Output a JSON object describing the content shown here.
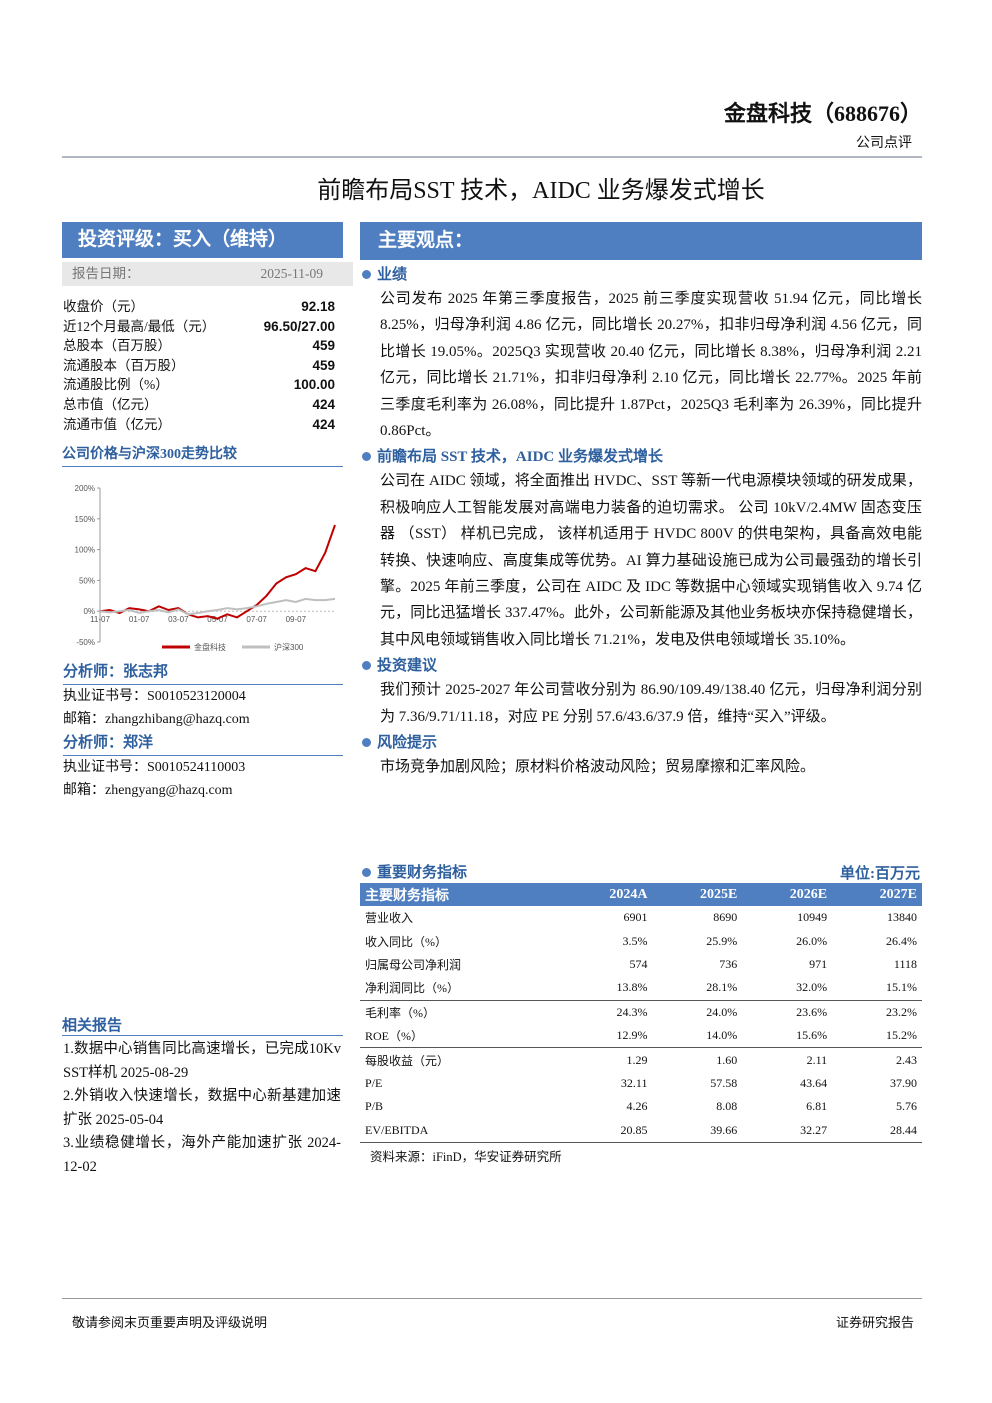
{
  "header": {
    "company": "金盘科技（688676）",
    "doc_type": "公司点评"
  },
  "title": "前瞻布局SST 技术，AIDC 业务爆发式增长",
  "rating": {
    "title": "投资评级：买入（维持）",
    "date_label": "报告日期：",
    "date": "2025-11-09"
  },
  "stock_info": [
    {
      "label": "收盘价（元）",
      "value": "92.18"
    },
    {
      "label": "近12个月最高/最低（元）",
      "value": "96.50/27.00"
    },
    {
      "label": "总股本（百万股）",
      "value": "459"
    },
    {
      "label": "流通股本（百万股）",
      "value": "459"
    },
    {
      "label": "流通股比例（%）",
      "value": "100.00"
    },
    {
      "label": "总市值（亿元）",
      "value": "424"
    },
    {
      "label": "流通市值（亿元）",
      "value": "424"
    }
  ],
  "price_chart": {
    "type": "line",
    "title": "公司价格与沪深300走势比较",
    "ylim": [
      -50,
      200
    ],
    "yticks": [
      {
        "value": 200,
        "label": "200%"
      },
      {
        "value": 150,
        "label": "150%"
      },
      {
        "value": 100,
        "label": "100%"
      },
      {
        "value": 50,
        "label": "50%"
      },
      {
        "value": 0,
        "label": "0%"
      },
      {
        "value": -50,
        "label": "-50%"
      }
    ],
    "categories": [
      "11-07",
      null,
      null,
      null,
      "01-07",
      null,
      null,
      null,
      "03-07",
      null,
      null,
      null,
      "05-07",
      null,
      null,
      null,
      "07-07",
      null,
      null,
      null,
      "09-07",
      null,
      null,
      null,
      null
    ],
    "series": [
      {
        "name": "金盘科技",
        "color": "#c00000",
        "values": [
          0,
          2,
          -3,
          5,
          3,
          0,
          8,
          2,
          5,
          -5,
          -10,
          -8,
          -12,
          -5,
          -10,
          0,
          10,
          25,
          45,
          55,
          60,
          70,
          65,
          95,
          140
        ]
      },
      {
        "name": "沪深300",
        "color": "#bfbfbf",
        "values": [
          0,
          -2,
          0,
          2,
          -3,
          0,
          2,
          -2,
          3,
          -5,
          -3,
          0,
          2,
          5,
          3,
          5,
          8,
          12,
          15,
          18,
          15,
          20,
          18,
          18,
          20
        ]
      }
    ]
  },
  "analysts": [
    {
      "name": "分析师：张志邦",
      "cert": "执业证书号：S0010523120004",
      "email": "邮箱：zhangzhibang@hazq.com"
    },
    {
      "name": "分析师：郑洋",
      "cert": "执业证书号：S0010524110003",
      "email": "邮箱：zhengyang@hazq.com"
    }
  ],
  "related": {
    "title": "相关报告",
    "items": [
      "1.数据中心销售同比高速增长，已完成10Kv SST样机 2025-08-29",
      "2.外销收入快速增长，数据中心新基建加速扩张 2025-05-04",
      "3.业绩稳健增长，海外产能加速扩张 2024-12-02"
    ]
  },
  "main": {
    "title": "主要观点：",
    "sections": [
      {
        "heading": "业绩",
        "text": "公司发布 2025 年第三季度报告，2025 前三季度实现营收 51.94 亿元，同比增长 8.25%，归母净利润 4.86 亿元，同比增长 20.27%，扣非归母净利润 4.56 亿元，同比增长 19.05%。2025Q3 实现营收 20.40 亿元，同比增长 8.38%，归母净利润 2.21 亿元，同比增长 21.71%，扣非归母净利 2.10 亿元，同比增长 22.77%。2025 年前三季度毛利率为 26.08%，同比提升 1.87Pct，2025Q3 毛利率为 26.39%，同比提升 0.86Pct。"
      },
      {
        "heading": "前瞻布局 SST 技术，AIDC 业务爆发式增长",
        "text": "公司在 AIDC 领域，将全面推出 HVDC、SST 等新一代电源模块领域的研发成果，积极响应人工智能发展对高端电力装备的迫切需求。 公司 10kV/2.4MW 固态变压器 （SST） 样机已完成， 该样机适用于 HVDC 800V 的供电架构，具备高效电能转换、快速响应、高度集成等优势。AI 算力基础设施已成为公司最强劲的增长引擎。2025 年前三季度，公司在 AIDC 及 IDC 等数据中心领域实现销售收入 9.74 亿元，同比迅猛增长 337.47%。此外，公司新能源及其他业务板块亦保持稳健增长，其中风电领域销售收入同比增长 71.21%，发电及供电领域增长 35.10%。"
      },
      {
        "heading": "投资建议",
        "text": "我们预计 2025-2027 年公司营收分别为 86.90/109.49/138.40 亿元，归母净利润分别为 7.36/9.71/11.18，对应 PE 分别 57.6/43.6/37.9 倍，维持“买入”评级。"
      },
      {
        "heading": "风险提示",
        "text": "市场竞争加剧风险；原材料价格波动风险；贸易摩擦和汇率风险。"
      }
    ]
  },
  "table": {
    "title": "重要财务指标",
    "unit": "单位:百万元",
    "header": [
      "主要财务指标",
      "2024A",
      "2025E",
      "2026E",
      "2027E"
    ],
    "rows": [
      [
        "营业收入",
        "6901",
        "8690",
        "10949",
        "13840"
      ],
      [
        "收入同比（%）",
        "3.5%",
        "25.9%",
        "26.0%",
        "26.4%"
      ],
      [
        "归属母公司净利润",
        "574",
        "736",
        "971",
        "1118"
      ],
      [
        "净利润同比（%）",
        "13.8%",
        "28.1%",
        "32.0%",
        "15.1%"
      ],
      [
        "毛利率（%）",
        "24.3%",
        "24.0%",
        "23.6%",
        "23.2%"
      ],
      [
        "ROE（%）",
        "12.9%",
        "14.0%",
        "15.6%",
        "15.2%"
      ],
      [
        "每股收益（元）",
        "1.29",
        "1.60",
        "2.11",
        "2.43"
      ],
      [
        "P/E",
        "32.11",
        "57.58",
        "43.64",
        "37.90"
      ],
      [
        "P/B",
        "4.26",
        "8.08",
        "6.81",
        "5.76"
      ],
      [
        "EV/EBITDA",
        "20.85",
        "39.66",
        "32.27",
        "28.44"
      ]
    ],
    "source": "资料来源：iFinD，华安证券研究所"
  },
  "footer": {
    "left": "敬请参阅末页重要声明及评级说明",
    "right": "证券研究报告"
  }
}
